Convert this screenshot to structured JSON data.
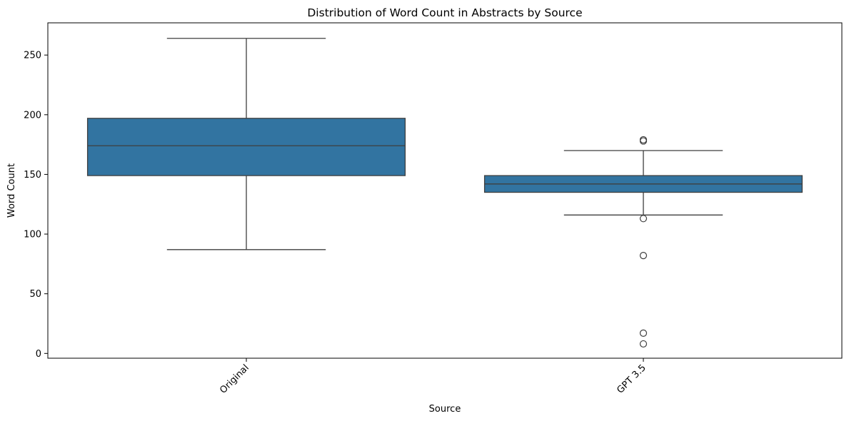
{
  "chart_data": {
    "type": "box",
    "title": "Distribution of Word Count in Abstracts by Source",
    "xlabel": "Source",
    "ylabel": "Word Count",
    "ylim": [
      -4,
      277
    ],
    "yticks": [
      0,
      50,
      100,
      150,
      200,
      250
    ],
    "categories": [
      "Original",
      "GPT 3.5"
    ],
    "box_color": "#3274a1",
    "line_color": "#3f3f3f",
    "grid": false,
    "boxes": [
      {
        "category": "Original",
        "whisker_low": 87,
        "q1": 149,
        "median": 174,
        "q3": 197,
        "whisker_high": 264,
        "outliers": []
      },
      {
        "category": "GPT 3.5",
        "whisker_low": 116,
        "q1": 135,
        "median": 142,
        "q3": 149,
        "whisker_high": 170,
        "outliers": [
          178,
          179,
          113,
          82,
          17,
          8
        ]
      }
    ]
  }
}
